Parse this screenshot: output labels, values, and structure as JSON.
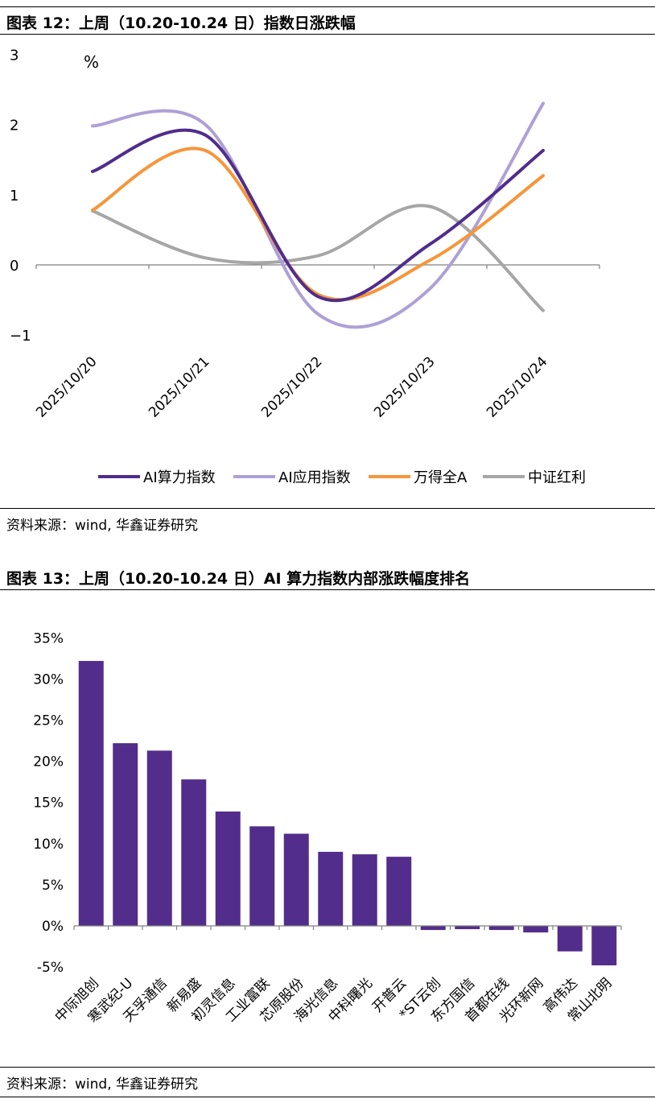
{
  "figure12": {
    "title": "图表 12：上周（10.20-10.24 日）指数日涨跌幅",
    "source": "资料来源：wind, 华鑫证券研究"
  },
  "figure13": {
    "title": "图表 13：上周（10.20-10.24 日）AI 算力指数内部涨跌幅度排名",
    "source": "资料来源：wind, 华鑫证券研究"
  },
  "chart_data": [
    {
      "type": "line",
      "unit_label": "%",
      "x": [
        "2025/10/20",
        "2025/10/21",
        "2025/10/22",
        "2025/10/23",
        "2025/10/24"
      ],
      "ylim": [
        -1,
        3
      ],
      "yticks": [
        3,
        2,
        1,
        0,
        -1
      ],
      "grid": false,
      "legend_position": "bottom",
      "smooth": true,
      "series": [
        {
          "name": "AI算力指数",
          "color": "#4f2d8c",
          "values": [
            1.33,
            1.85,
            -0.45,
            0.3,
            1.63
          ]
        },
        {
          "name": "AI应用指数",
          "color": "#aea0d6",
          "values": [
            1.98,
            2.0,
            -0.7,
            -0.33,
            2.3
          ]
        },
        {
          "name": "万得全A",
          "color": "#f5963a",
          "values": [
            0.78,
            1.63,
            -0.42,
            0.07,
            1.27
          ]
        },
        {
          "name": "中证红利",
          "color": "#a6a6a6",
          "values": [
            0.77,
            0.1,
            0.13,
            0.83,
            -0.65
          ]
        }
      ]
    },
    {
      "type": "bar",
      "categories": [
        "中际旭创",
        "寒武纪-U",
        "天孚通信",
        "新易盛",
        "初灵信息",
        "工业富联",
        "芯原股份",
        "海光信息",
        "中科曙光",
        "开普云",
        "*ST云创",
        "东方国信",
        "首都在线",
        "光环新网",
        "高伟达",
        "常山北明"
      ],
      "values": [
        32.2,
        22.2,
        21.3,
        17.8,
        13.9,
        12.1,
        11.2,
        9.0,
        8.7,
        8.4,
        -0.5,
        -0.4,
        -0.5,
        -0.8,
        -3.1,
        -4.8
      ],
      "ylim": [
        -5,
        35
      ],
      "yticks": [
        "35%",
        "30%",
        "25%",
        "20%",
        "15%",
        "10%",
        "5%",
        "0%",
        "-5%"
      ],
      "bar_color": "#532d8b",
      "grid": false
    }
  ]
}
